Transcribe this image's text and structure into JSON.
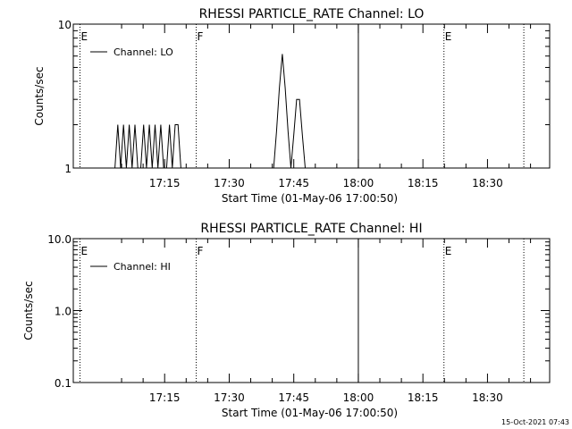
{
  "footer_timestamp": "15-Oct-2021 07:43",
  "chart_data": [
    {
      "type": "line",
      "title": "RHESSI PARTICLE_RATE Channel: LO",
      "xlabel": "Start Time (01-May-06 17:00:50)",
      "ylabel": "Counts/sec",
      "yscale": "log",
      "ylim": [
        1,
        10
      ],
      "xlim_minutes": [
        4.5,
        46.5
      ],
      "y_ticks": [
        {
          "v": 1,
          "label": "1"
        },
        {
          "v": 10,
          "label": "10"
        }
      ],
      "x_ticks": [
        {
          "v": 18.0,
          "label": "17:15"
        },
        {
          "v": 31.5,
          "label": "17:30"
        },
        {
          "v": 45.0,
          "label": "17:45"
        },
        {
          "v": 58.5,
          "label": "18:00"
        },
        {
          "v": 72.0,
          "label": "18:15"
        },
        {
          "v": 85.5,
          "label": "18:30"
        }
      ],
      "legend": {
        "label": "Channel: LO",
        "position": "top-left"
      },
      "markers": [
        {
          "label": "E",
          "v": 0.3,
          "style": "dotted"
        },
        {
          "label": "F",
          "v": 24.6,
          "style": "dotted"
        },
        {
          "label": "",
          "v": 58.5,
          "style": "solid"
        },
        {
          "label": "E",
          "v": 76.4,
          "style": "dotted"
        },
        {
          "label": "",
          "v": 93.1,
          "style": "dotted"
        }
      ],
      "series": [
        {
          "name": "Channel: LO",
          "x": [
            7.6,
            8.2,
            8.8,
            9.4,
            10.0,
            10.6,
            11.2,
            11.8,
            12.4,
            13.0,
            13.6,
            14.2,
            14.8,
            15.4,
            16.0,
            16.6,
            17.2,
            17.8,
            18.4,
            19.0,
            19.6,
            20.2,
            20.8,
            21.4,
            22.0,
            40.8,
            41.4,
            42.0,
            42.6,
            43.2,
            43.8,
            44.4,
            45.0,
            45.6,
            46.2,
            46.8,
            47.4,
            48.0
          ],
          "y": [
            1,
            2,
            1,
            2,
            1,
            2,
            1,
            2,
            1,
            1,
            2,
            1,
            2,
            1,
            2,
            1,
            2,
            1,
            1,
            2,
            1,
            2,
            2,
            1,
            1,
            1,
            1.8,
            3.6,
            6.2,
            3.6,
            1.8,
            1,
            1.7,
            3,
            3,
            1.7,
            1,
            1
          ]
        }
      ]
    },
    {
      "type": "line",
      "title": "RHESSI PARTICLE_RATE Channel: HI",
      "xlabel": "Start Time (01-May-06 17:00:50)",
      "ylabel": "Counts/sec",
      "yscale": "log",
      "ylim": [
        0.1,
        10
      ],
      "xlim_minutes": [
        4.5,
        46.5
      ],
      "y_ticks": [
        {
          "v": 0.1,
          "label": "0.1"
        },
        {
          "v": 1,
          "label": "1.0"
        },
        {
          "v": 10,
          "label": "10.0"
        }
      ],
      "x_ticks": [
        {
          "v": 18.0,
          "label": "17:15"
        },
        {
          "v": 31.5,
          "label": "17:30"
        },
        {
          "v": 45.0,
          "label": "17:45"
        },
        {
          "v": 58.5,
          "label": "18:00"
        },
        {
          "v": 72.0,
          "label": "18:15"
        },
        {
          "v": 85.5,
          "label": "18:30"
        }
      ],
      "legend": {
        "label": "Channel: HI",
        "position": "top-left"
      },
      "markers": [
        {
          "label": "E",
          "v": 0.3,
          "style": "dotted"
        },
        {
          "label": "F",
          "v": 24.6,
          "style": "dotted"
        },
        {
          "label": "",
          "v": 58.5,
          "style": "solid"
        },
        {
          "label": "E",
          "v": 76.4,
          "style": "dotted"
        },
        {
          "label": "",
          "v": 93.1,
          "style": "dotted"
        }
      ],
      "series": [
        {
          "name": "Channel: HI",
          "x": [],
          "y": []
        }
      ]
    }
  ]
}
